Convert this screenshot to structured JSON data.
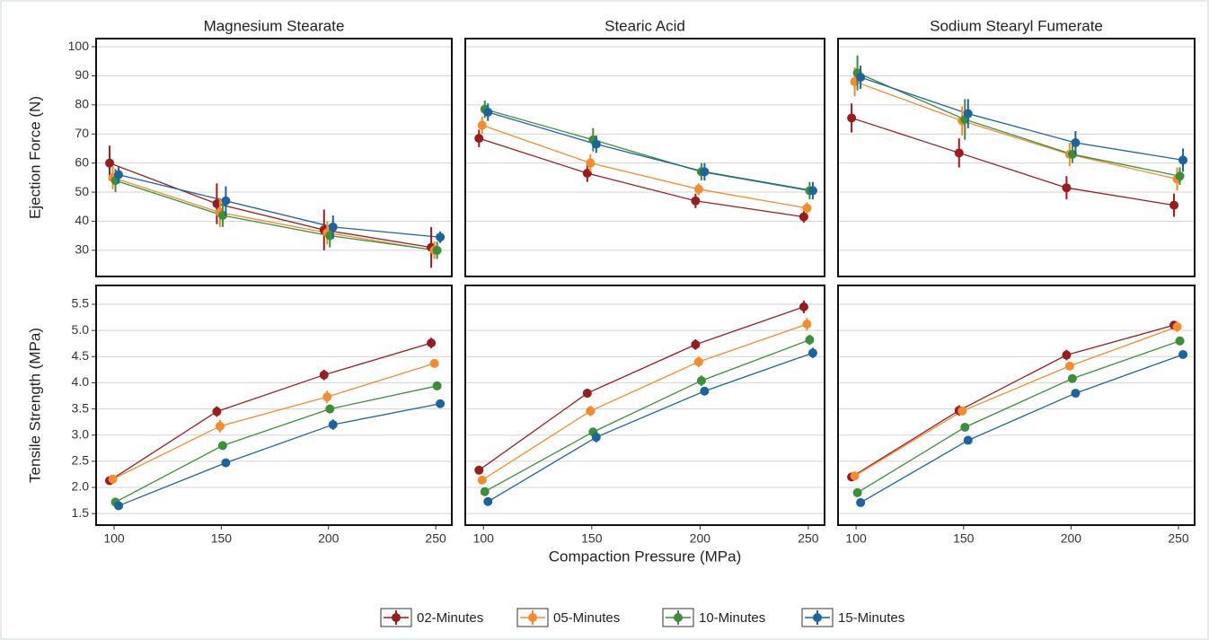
{
  "chart_data": [
    {
      "type": "line",
      "title": "Magnesium Stearate",
      "ylabel": "Ejection Force (N)",
      "x": [
        100,
        150,
        200,
        250
      ],
      "xlim": [
        91.6,
        257.5
      ],
      "ylim": [
        21,
        102.8
      ],
      "yticks": [
        30,
        40,
        50,
        60,
        70,
        80,
        90,
        100
      ],
      "grid": true,
      "series": [
        {
          "name": "02-Minutes",
          "color": "#9b1c1f",
          "values": [
            60,
            46,
            37,
            31
          ],
          "errors": [
            6,
            7,
            7,
            7
          ]
        },
        {
          "name": "05-Minutes",
          "color": "#f58b2c",
          "values": [
            55,
            43,
            36,
            30
          ],
          "errors": [
            4,
            5,
            4,
            3
          ]
        },
        {
          "name": "10-Minutes",
          "color": "#3b8f3a",
          "values": [
            54,
            42,
            35,
            30
          ],
          "errors": [
            4,
            4,
            4,
            3
          ]
        },
        {
          "name": "15-Minutes",
          "color": "#1b64a0",
          "values": [
            56,
            47,
            38,
            34.5
          ],
          "errors": [
            3,
            5,
            4,
            2
          ]
        }
      ]
    },
    {
      "type": "line",
      "title": "Stearic Acid",
      "x": [
        100,
        150,
        200,
        250
      ],
      "xlim": [
        91.6,
        257.5
      ],
      "ylim": [
        21,
        102.8
      ],
      "series": [
        {
          "values": [
            68.5,
            56.5,
            47,
            41.5
          ],
          "errors": [
            3,
            3,
            2.5,
            2
          ]
        },
        {
          "values": [
            73,
            60,
            51,
            44.5
          ],
          "errors": [
            3,
            3,
            2,
            2
          ]
        },
        {
          "values": [
            78.5,
            68,
            57,
            50.5
          ],
          "errors": [
            3,
            4,
            3,
            3
          ]
        },
        {
          "values": [
            77.5,
            66.5,
            57,
            50.5
          ],
          "errors": [
            3,
            3,
            3,
            3
          ]
        }
      ]
    },
    {
      "type": "line",
      "title": "Sodium Stearyl Fumerate",
      "x": [
        100,
        150,
        200,
        250
      ],
      "xlim": [
        91.6,
        257.5
      ],
      "ylim": [
        21,
        102.8
      ],
      "series": [
        {
          "values": [
            75.5,
            63.5,
            51.5,
            45.5
          ],
          "errors": [
            5,
            5,
            4,
            4
          ]
        },
        {
          "values": [
            88,
            74.5,
            63,
            54.5
          ],
          "errors": [
            5,
            5,
            4,
            4
          ]
        },
        {
          "values": [
            91,
            75,
            63,
            55.5
          ],
          "errors": [
            6,
            7,
            3,
            3
          ]
        },
        {
          "values": [
            89.5,
            77,
            67,
            61
          ],
          "errors": [
            4,
            5,
            4,
            4
          ]
        }
      ]
    },
    {
      "type": "line",
      "ylabel": "Tensile Strength (MPa)",
      "x": [
        100,
        150,
        200,
        250
      ],
      "xlim": [
        91.6,
        257.5
      ],
      "ylim": [
        1.28,
        5.86
      ],
      "xticks": [
        100,
        150,
        200,
        250
      ],
      "yticks": [
        1.5,
        {
          "value": 2,
          "label": "2.0"
        },
        2.5,
        {
          "value": 3,
          "label": "3.0"
        },
        3.5,
        {
          "value": 4,
          "label": "4.0"
        },
        4.5,
        {
          "value": 5,
          "label": "5.0"
        },
        5.5
      ],
      "grid": true,
      "series": [
        {
          "values": [
            2.13,
            3.45,
            4.15,
            4.76
          ],
          "errors": [
            0.03,
            0.1,
            0.1,
            0.1
          ]
        },
        {
          "values": [
            2.16,
            3.17,
            3.73,
            4.37
          ],
          "errors": [
            0.05,
            0.12,
            0.12,
            0.07
          ]
        },
        {
          "values": [
            1.72,
            2.8,
            3.5,
            3.94
          ],
          "errors": [
            0.03,
            0.05,
            0.08,
            0.08
          ]
        },
        {
          "values": [
            1.65,
            2.47,
            3.2,
            3.6
          ],
          "errors": [
            0.03,
            0.05,
            0.1,
            0.08
          ]
        }
      ]
    },
    {
      "type": "line",
      "xlabel": "Compaction Pressure (MPa)",
      "x": [
        100,
        150,
        200,
        250
      ],
      "xlim": [
        91.6,
        257.5
      ],
      "ylim": [
        1.28,
        5.86
      ],
      "xticks": [
        100,
        150,
        200,
        250
      ],
      "series": [
        {
          "values": [
            2.33,
            3.8,
            4.73,
            5.45
          ],
          "errors": [
            0.06,
            0.08,
            0.1,
            0.12
          ]
        },
        {
          "values": [
            2.14,
            3.46,
            4.4,
            5.12
          ],
          "errors": [
            0.05,
            0.1,
            0.1,
            0.12
          ]
        },
        {
          "values": [
            1.92,
            3.06,
            4.04,
            4.82
          ],
          "errors": [
            0.05,
            0.07,
            0.1,
            0.1
          ]
        },
        {
          "values": [
            1.73,
            2.96,
            3.84,
            4.57
          ],
          "errors": [
            0.04,
            0.1,
            0.06,
            0.1
          ]
        }
      ]
    },
    {
      "type": "line",
      "x": [
        100,
        150,
        200,
        250
      ],
      "xlim": [
        91.6,
        257.5
      ],
      "ylim": [
        1.28,
        5.86
      ],
      "xticks": [
        100,
        150,
        200,
        250
      ],
      "series": [
        {
          "values": [
            2.2,
            3.47,
            4.53,
            5.1
          ],
          "errors": [
            0.05,
            0.1,
            0.1,
            0.08
          ]
        },
        {
          "values": [
            2.22,
            3.46,
            4.32,
            5.07
          ],
          "errors": [
            0.05,
            0.08,
            0.06,
            0.1
          ]
        },
        {
          "values": [
            1.9,
            3.15,
            4.08,
            4.8
          ],
          "errors": [
            0.05,
            0.05,
            0.05,
            0.05
          ]
        },
        {
          "values": [
            1.71,
            2.9,
            3.8,
            4.54
          ],
          "errors": [
            0.04,
            0.05,
            0.04,
            0.05
          ]
        }
      ]
    }
  ]
}
